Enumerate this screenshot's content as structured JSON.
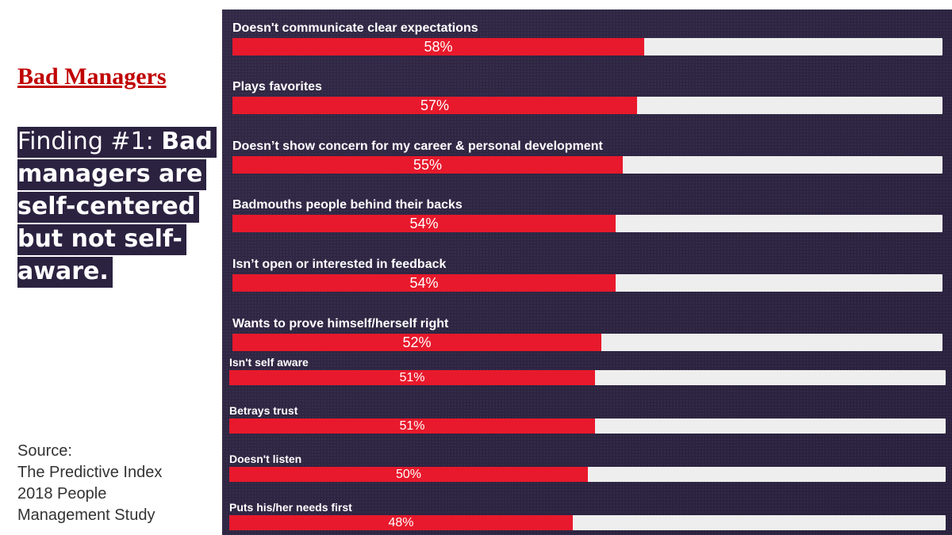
{
  "slide": {
    "title": "Bad Managers",
    "finding_lead": "Finding #1: ",
    "finding_bold": "Bad managers are self-centered but not self-aware.",
    "source_lines": [
      "Source:",
      "The Predictive Index",
      "2018 People",
      "Management Study"
    ]
  },
  "colors": {
    "title": "#c00000",
    "panel_bg": "#2b2240",
    "bar_fill": "#e8192c",
    "bar_track": "#eeeeee",
    "text_light": "#ffffff"
  },
  "chart_data": {
    "type": "bar",
    "orientation": "horizontal",
    "title": "",
    "xlabel": "",
    "ylabel": "",
    "xlim": [
      0,
      100
    ],
    "unit": "%",
    "categories": [
      "Doesn't communicate clear expectations",
      "Plays favorites",
      "Doesn’t show concern for my career & personal development",
      "Badmouths people behind their backs",
      "Isn’t open or interested in feedback",
      "Wants to prove himself/herself right",
      "Isn't self aware",
      "Betrays trust",
      "Doesn't listen",
      "Puts his/her needs first"
    ],
    "values": [
      58,
      57,
      55,
      54,
      54,
      52,
      51,
      51,
      50,
      48
    ],
    "value_labels": [
      "58%",
      "57%",
      "55%",
      "54%",
      "54%",
      "52%",
      "51%",
      "51%",
      "50%",
      "48%"
    ]
  }
}
